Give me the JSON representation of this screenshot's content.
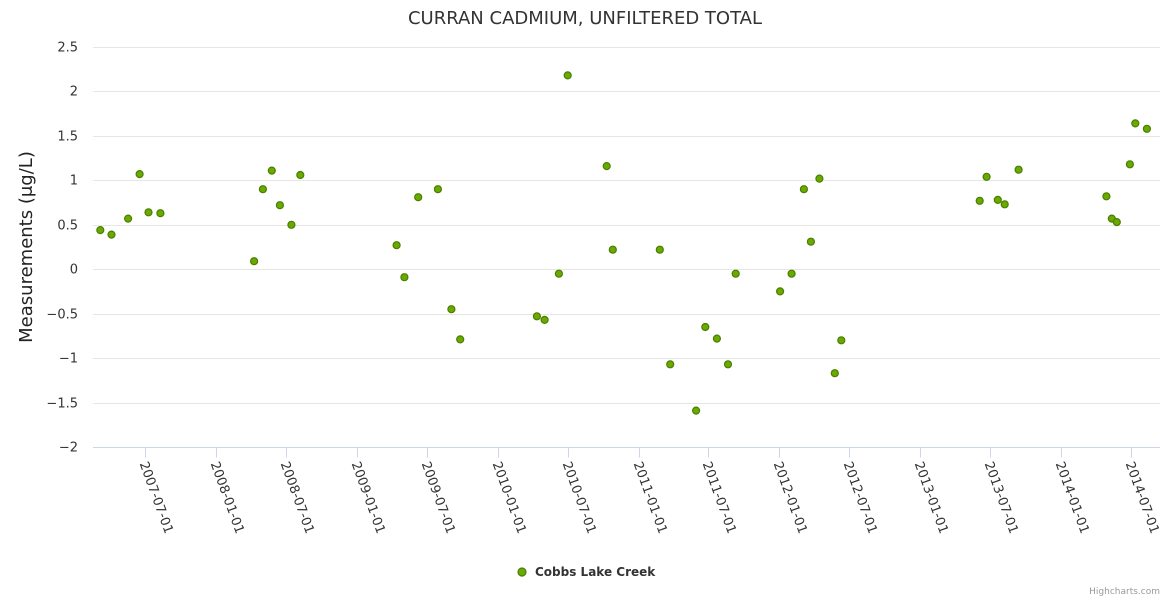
{
  "chart_data": {
    "type": "scatter",
    "title": "CURRAN CADMIUM, UNFILTERED TOTAL",
    "ylabel": "Measurements (μg/L)",
    "xlabel": "",
    "ylim": [
      -2,
      2.5
    ],
    "yticks": [
      2.5,
      2,
      1.5,
      1,
      0.5,
      0,
      -0.5,
      -1,
      -1.5,
      -2
    ],
    "ytick_labels": [
      "2.5",
      "2",
      "1.5",
      "1",
      "0.5",
      "0",
      "−0.5",
      "−1",
      "−1.5",
      "−2"
    ],
    "xlim": [
      "2007-02-15",
      "2014-09-15"
    ],
    "xticks": [
      "2007-07-01",
      "2008-01-01",
      "2008-07-01",
      "2009-01-01",
      "2009-07-01",
      "2010-01-01",
      "2010-07-01",
      "2011-01-01",
      "2011-07-01",
      "2012-01-01",
      "2012-07-01",
      "2013-01-01",
      "2013-07-01",
      "2014-01-01",
      "2014-07-01"
    ],
    "legend_position": "bottom-center",
    "series": [
      {
        "name": "Cobbs Lake Creek",
        "color": "#6aaa00",
        "marker_stroke": "#4a7e00",
        "points": [
          {
            "x": "2007-03-06",
            "y": 0.44
          },
          {
            "x": "2007-04-04",
            "y": 0.39
          },
          {
            "x": "2007-05-17",
            "y": 0.57
          },
          {
            "x": "2007-06-16",
            "y": 1.07
          },
          {
            "x": "2007-07-09",
            "y": 0.64
          },
          {
            "x": "2007-08-09",
            "y": 0.63
          },
          {
            "x": "2008-04-08",
            "y": 0.09
          },
          {
            "x": "2008-05-01",
            "y": 0.9
          },
          {
            "x": "2008-05-24",
            "y": 1.11
          },
          {
            "x": "2008-06-14",
            "y": 0.72
          },
          {
            "x": "2008-07-14",
            "y": 0.5
          },
          {
            "x": "2008-08-06",
            "y": 1.06
          },
          {
            "x": "2009-04-13",
            "y": 0.27
          },
          {
            "x": "2009-05-03",
            "y": -0.09
          },
          {
            "x": "2009-06-08",
            "y": 0.81
          },
          {
            "x": "2009-07-29",
            "y": 0.9
          },
          {
            "x": "2009-09-02",
            "y": -0.45
          },
          {
            "x": "2009-09-25",
            "y": -0.79
          },
          {
            "x": "2010-04-12",
            "y": -0.53
          },
          {
            "x": "2010-05-02",
            "y": -0.57
          },
          {
            "x": "2010-06-08",
            "y": -0.05
          },
          {
            "x": "2010-07-01",
            "y": 2.18
          },
          {
            "x": "2010-10-10",
            "y": 1.16
          },
          {
            "x": "2010-10-26",
            "y": 0.22
          },
          {
            "x": "2011-02-25",
            "y": 0.22
          },
          {
            "x": "2011-03-24",
            "y": -1.07
          },
          {
            "x": "2011-05-30",
            "y": -1.59
          },
          {
            "x": "2011-06-23",
            "y": -0.65
          },
          {
            "x": "2011-07-23",
            "y": -0.78
          },
          {
            "x": "2011-08-21",
            "y": -1.07
          },
          {
            "x": "2011-09-10",
            "y": -0.05
          },
          {
            "x": "2012-01-03",
            "y": -0.25
          },
          {
            "x": "2012-02-02",
            "y": -0.05
          },
          {
            "x": "2012-03-05",
            "y": 0.9
          },
          {
            "x": "2012-03-23",
            "y": 0.31
          },
          {
            "x": "2012-04-14",
            "y": 1.02
          },
          {
            "x": "2012-05-24",
            "y": -1.17
          },
          {
            "x": "2012-06-10",
            "y": -0.8
          },
          {
            "x": "2013-06-04",
            "y": 0.77
          },
          {
            "x": "2013-06-22",
            "y": 1.04
          },
          {
            "x": "2013-07-21",
            "y": 0.78
          },
          {
            "x": "2013-08-08",
            "y": 0.73
          },
          {
            "x": "2013-09-13",
            "y": 1.12
          },
          {
            "x": "2014-04-29",
            "y": 0.82
          },
          {
            "x": "2014-05-13",
            "y": 0.57
          },
          {
            "x": "2014-05-26",
            "y": 0.53
          },
          {
            "x": "2014-06-29",
            "y": 1.18
          },
          {
            "x": "2014-07-13",
            "y": 1.64
          },
          {
            "x": "2014-08-12",
            "y": 1.58
          }
        ]
      }
    ]
  },
  "credits": "Highcharts.com"
}
